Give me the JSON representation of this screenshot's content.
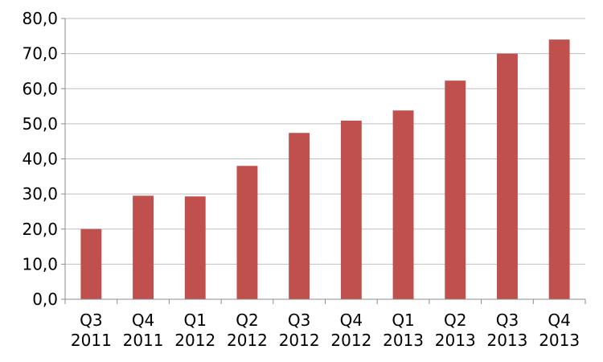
{
  "chart_data": {
    "type": "bar",
    "title": "",
    "xlabel": "",
    "ylabel": "",
    "categories": [
      [
        "Q3",
        "2011"
      ],
      [
        "Q4",
        "2011"
      ],
      [
        "Q1",
        "2012"
      ],
      [
        "Q2",
        "2012"
      ],
      [
        "Q3",
        "2012"
      ],
      [
        "Q4",
        "2012"
      ],
      [
        "Q1",
        "2013"
      ],
      [
        "Q2",
        "2013"
      ],
      [
        "Q3",
        "2013"
      ],
      [
        "Q4",
        "2013"
      ]
    ],
    "values": [
      20.0,
      29.5,
      29.3,
      38.0,
      47.4,
      50.9,
      53.8,
      62.3,
      70.0,
      74.0
    ],
    "ylim": [
      0,
      80
    ],
    "yticks": [
      0,
      10,
      20,
      30,
      40,
      50,
      60,
      70,
      80
    ],
    "ytick_labels": [
      "0,0",
      "10,0",
      "20,0",
      "30,0",
      "40,0",
      "50,0",
      "60,0",
      "70,0",
      "80,0"
    ],
    "grid": true,
    "legend": "none",
    "bar_color": "#c0504d"
  }
}
